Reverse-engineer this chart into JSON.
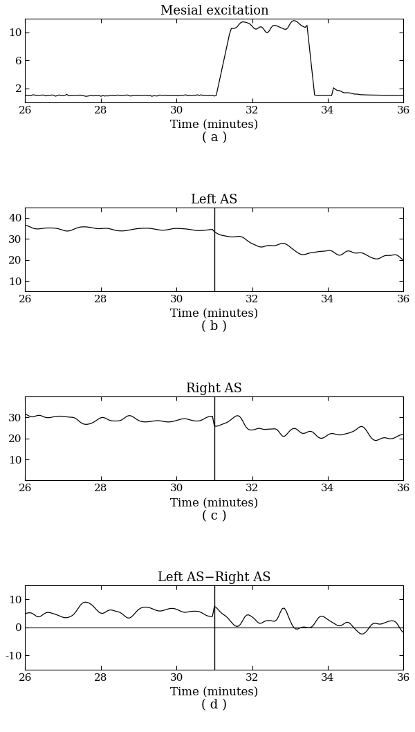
{
  "figsize": [
    6.0,
    10.58
  ],
  "dpi": 100,
  "bg_color": "#ffffff",
  "xlim": [
    26,
    36
  ],
  "xticks": [
    26,
    28,
    30,
    32,
    34,
    36
  ],
  "xlabel": "Time (minutes)",
  "vline_x": 31.0,
  "subplot_labels": [
    "( a )",
    "( b )",
    "( c )",
    "( d )"
  ],
  "titles": [
    "Mesial excitation",
    "Left AS",
    "Right AS",
    "Left AS−Right AS"
  ],
  "panel_a": {
    "ylim": [
      0,
      12
    ],
    "yticks": [
      2,
      6,
      10
    ],
    "baseline_val": 1.0,
    "seizure_start": 31.05,
    "seizure_end": 33.45,
    "peak_val": 11.0,
    "second_burst_start": 33.82,
    "second_burst_end": 34.12
  },
  "panel_b": {
    "ylim": [
      5,
      45
    ],
    "yticks": [
      10,
      20,
      30,
      40
    ]
  },
  "panel_c": {
    "ylim": [
      0,
      40
    ],
    "yticks": [
      10,
      20,
      30
    ]
  },
  "panel_d": {
    "ylim": [
      -15,
      15
    ],
    "yticks": [
      -10,
      0,
      10
    ]
  },
  "line_color": "#000000",
  "line_width": 0.9,
  "font_family": "serif"
}
